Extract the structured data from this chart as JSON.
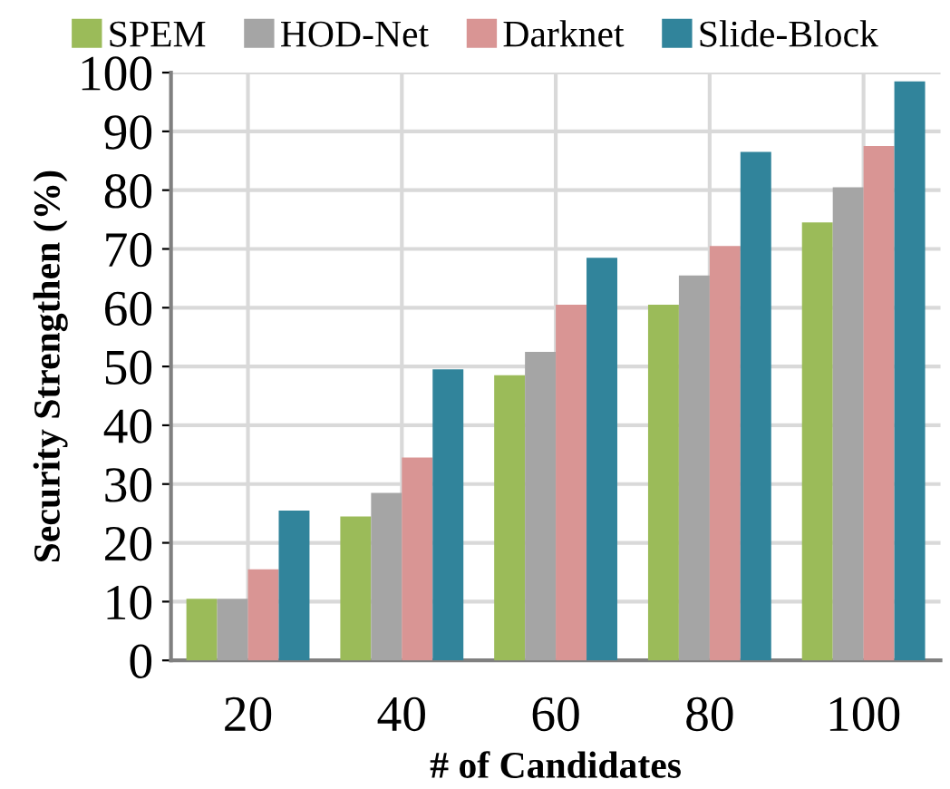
{
  "chart_data": {
    "type": "bar",
    "xlabel": "# of Candidates",
    "ylabel": "Security Strengthen (%)",
    "categories": [
      "20",
      "40",
      "60",
      "80",
      "100"
    ],
    "series": [
      {
        "name": "SPEM",
        "color": "#9bbb59",
        "values": [
          10.5,
          24.5,
          48.5,
          60.5,
          74.5
        ]
      },
      {
        "name": "HOD-Net",
        "color": "#a5a5a5",
        "values": [
          10.5,
          28.5,
          52.5,
          65.5,
          80.5
        ]
      },
      {
        "name": "Darknet",
        "color": "#d99594",
        "values": [
          15.5,
          34.5,
          60.5,
          70.5,
          87.5
        ]
      },
      {
        "name": "Slide-Block",
        "color": "#31849b",
        "values": [
          25.5,
          49.5,
          68.5,
          86.5,
          98.5
        ]
      }
    ],
    "ylim": [
      0,
      100
    ],
    "yticks": [
      0,
      10,
      20,
      30,
      40,
      50,
      60,
      70,
      80,
      90,
      100
    ],
    "grid": true,
    "legend": "top"
  }
}
